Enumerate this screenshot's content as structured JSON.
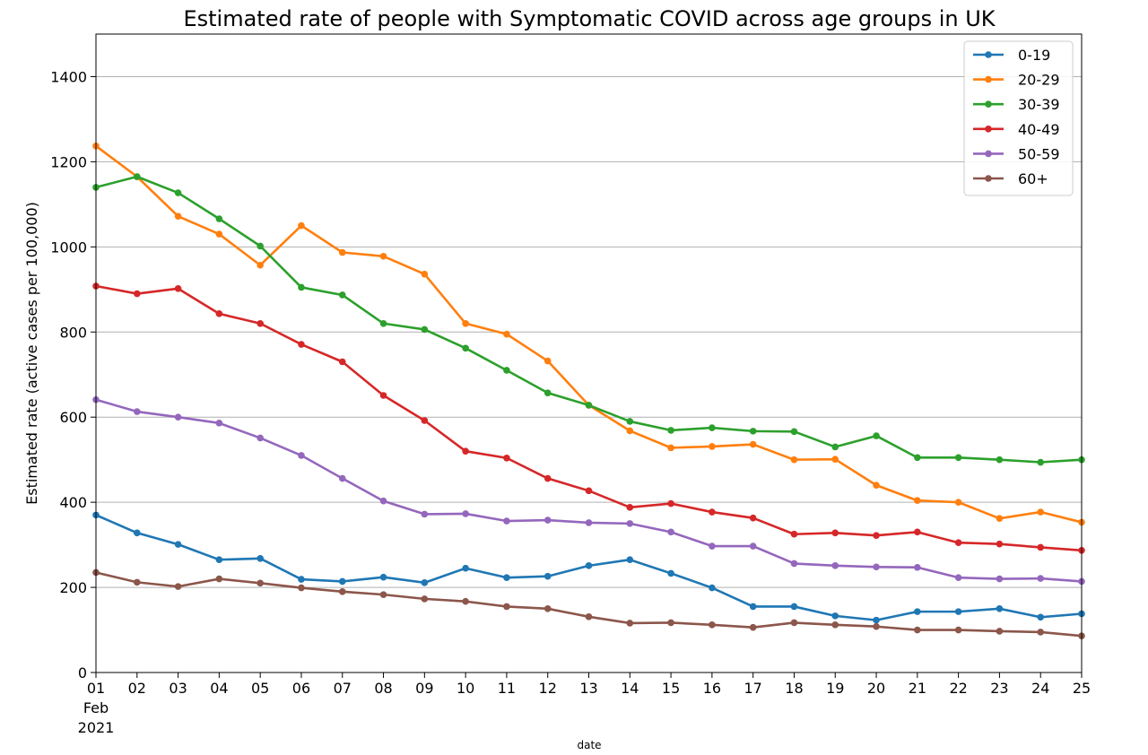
{
  "chart_data": {
    "type": "line",
    "title": "Estimated rate of people with Symptomatic COVID across age groups in UK",
    "xlabel": "date",
    "ylabel": "Estimated rate (active cases per 100,000)",
    "x": [
      "2021-02-01",
      "2021-02-02",
      "2021-02-03",
      "2021-02-04",
      "2021-02-05",
      "2021-02-06",
      "2021-02-07",
      "2021-02-08",
      "2021-02-09",
      "2021-02-10",
      "2021-02-11",
      "2021-02-12",
      "2021-02-13",
      "2021-02-14",
      "2021-02-15",
      "2021-02-16",
      "2021-02-17",
      "2021-02-18",
      "2021-02-19",
      "2021-02-20",
      "2021-02-21",
      "2021-02-22",
      "2021-02-23",
      "2021-02-24",
      "2021-02-25"
    ],
    "x_tick_labels": [
      "01",
      "02",
      "03",
      "04",
      "05",
      "06",
      "07",
      "08",
      "09",
      "10",
      "11",
      "12",
      "13",
      "14",
      "15",
      "16",
      "17",
      "18",
      "19",
      "20",
      "21",
      "22",
      "23",
      "24",
      "25"
    ],
    "x_tick_sublabels": [
      "Feb",
      "2021"
    ],
    "ylim": [
      0,
      1500
    ],
    "y_ticks": [
      0,
      200,
      400,
      600,
      800,
      1000,
      1200,
      1400
    ],
    "grid": "horizontal",
    "legend_position": "top-right",
    "series": [
      {
        "name": "0-19",
        "color": "#1f77b4",
        "values": [
          370,
          328,
          301,
          265,
          268,
          219,
          214,
          224,
          211,
          245,
          223,
          226,
          251,
          265,
          233,
          199,
          155,
          155,
          133,
          123,
          143,
          143,
          150,
          130,
          138
        ]
      },
      {
        "name": "20-29",
        "color": "#ff7f0e",
        "values": [
          1237,
          1165,
          1072,
          1030,
          957,
          1050,
          987,
          978,
          936,
          820,
          795,
          732,
          628,
          568,
          528,
          531,
          536,
          500,
          501,
          440,
          404,
          400,
          362,
          377,
          353
        ]
      },
      {
        "name": "30-39",
        "color": "#2ca02c",
        "values": [
          1140,
          1165,
          1127,
          1066,
          1002,
          905,
          887,
          820,
          806,
          762,
          710,
          657,
          628,
          590,
          569,
          575,
          567,
          566,
          530,
          556,
          505,
          505,
          500,
          494,
          500
        ]
      },
      {
        "name": "40-49",
        "color": "#d62728",
        "values": [
          908,
          890,
          902,
          843,
          820,
          771,
          730,
          651,
          592,
          520,
          504,
          456,
          427,
          388,
          397,
          377,
          363,
          325,
          328,
          322,
          330,
          305,
          302,
          294,
          287
        ]
      },
      {
        "name": "50-59",
        "color": "#9467bd",
        "values": [
          641,
          613,
          600,
          586,
          551,
          510,
          456,
          403,
          372,
          373,
          356,
          358,
          352,
          350,
          330,
          297,
          297,
          256,
          251,
          248,
          247,
          223,
          220,
          221,
          214
        ]
      },
      {
        "name": "60+",
        "color": "#8c564b",
        "values": [
          235,
          212,
          202,
          220,
          210,
          199,
          190,
          183,
          173,
          167,
          155,
          150,
          131,
          116,
          117,
          112,
          106,
          117,
          112,
          108,
          100,
          100,
          97,
          95,
          86
        ]
      }
    ]
  }
}
